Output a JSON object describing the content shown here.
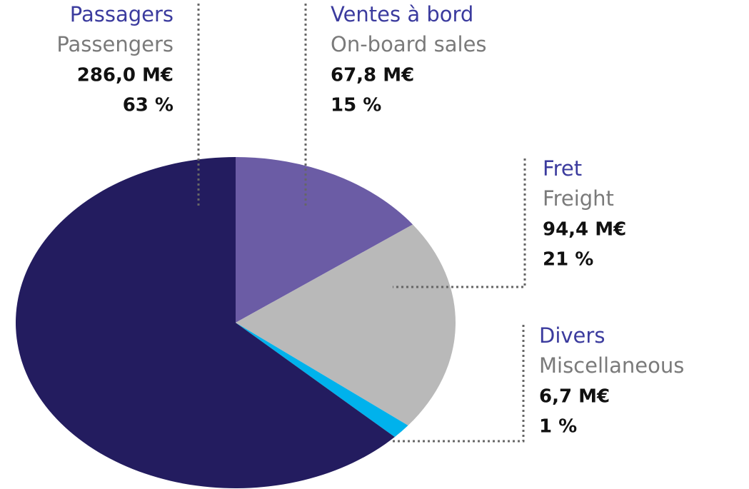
{
  "chart_data": {
    "type": "pie",
    "categories": [
      "Ventes à bord",
      "Fret",
      "Divers",
      "Passagers"
    ],
    "subtitles": [
      "On-board sales",
      "Freight",
      "Miscellaneous",
      "Passengers"
    ],
    "values": [
      67.8,
      94.4,
      6.7,
      286.0
    ],
    "value_labels": [
      "67,8 M€",
      "94,4 M€",
      "6,7 M€",
      "286,0 M€"
    ],
    "shares": [
      15,
      21,
      1,
      63
    ],
    "share_labels": [
      "15 %",
      "21 %",
      "1 %",
      "63 %"
    ],
    "colors": [
      "#6b5ca5",
      "#b9b9b9",
      "#00b2ec",
      "#231c5f"
    ]
  }
}
